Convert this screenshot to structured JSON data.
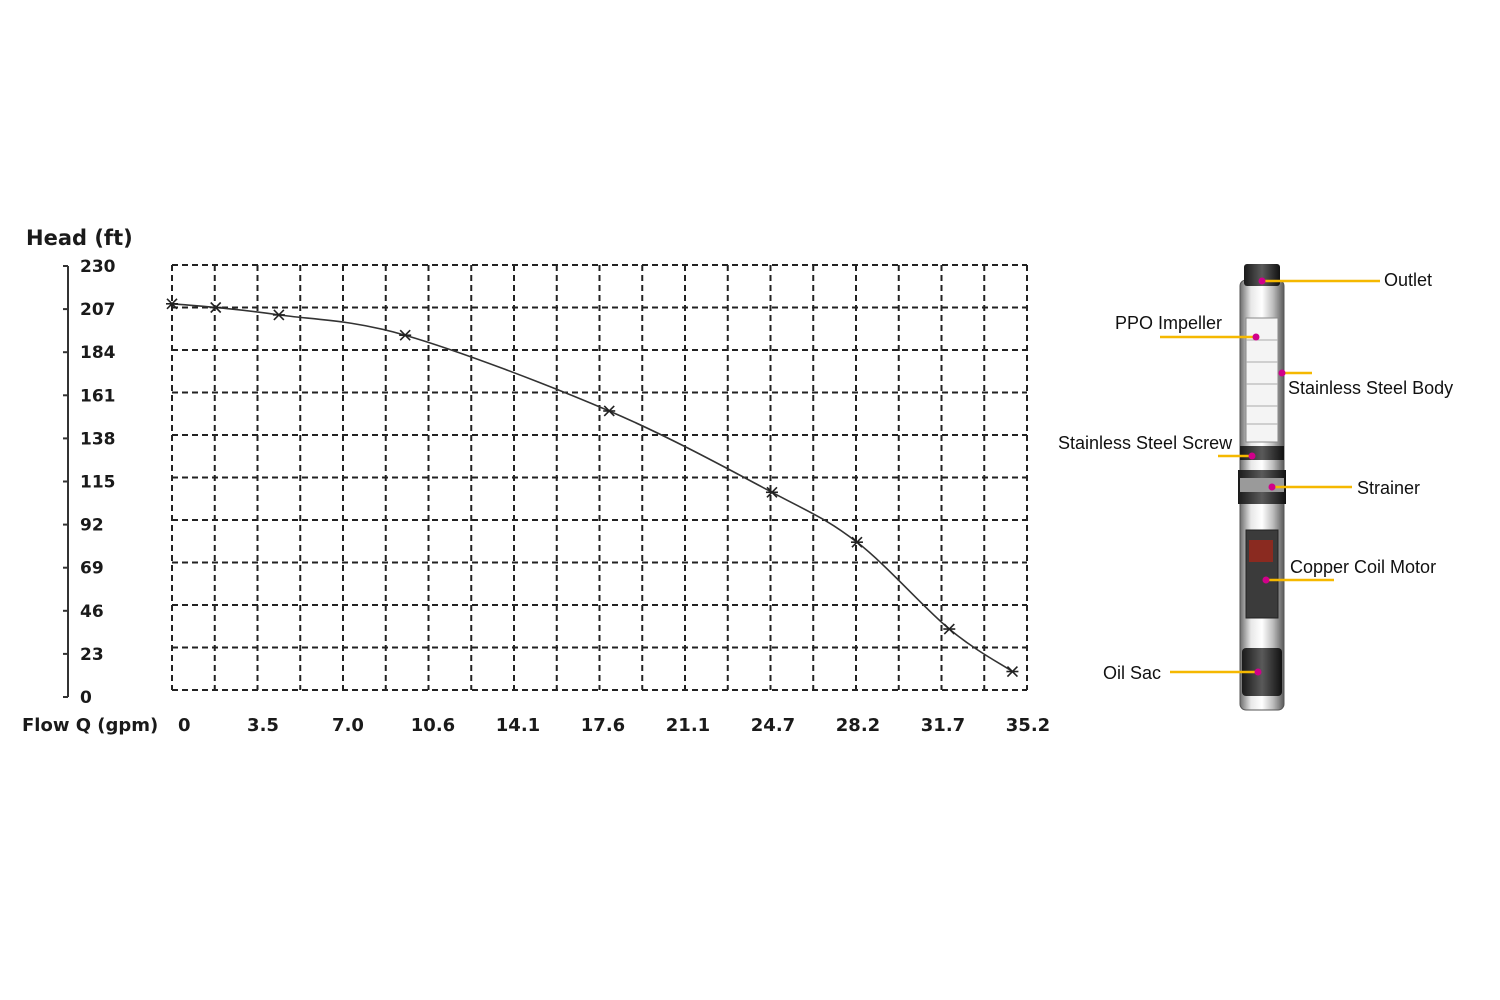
{
  "chart_data": {
    "type": "line",
    "ylabel": "Head (ft)",
    "xlabel": "Flow Q (gpm)",
    "x_ticks": [
      "0",
      "3.5",
      "7.0",
      "10.6",
      "14.1",
      "17.6",
      "21.1",
      "24.7",
      "28.2",
      "31.7",
      "35.2"
    ],
    "y_ticks": [
      "230",
      "207",
      "184",
      "161",
      "138",
      "115",
      "92",
      "69",
      "46",
      "23",
      "0"
    ],
    "xlim": [
      0,
      35.2
    ],
    "ylim": [
      0,
      230
    ],
    "grid": true,
    "series": [
      {
        "x": [
          0,
          1.8,
          4.4,
          9.6,
          18.0,
          24.7,
          28.2,
          32.0,
          34.6
        ],
        "y": [
          209,
          207,
          203,
          192,
          151,
          107,
          80,
          33,
          10
        ]
      }
    ]
  },
  "pump_diagram": {
    "labels": {
      "outlet": "Outlet",
      "ppo_impeller": "PPO Impeller",
      "stainless_steel_body": "Stainless Steel Body",
      "stainless_steel_screw": "Stainless Steel Screw",
      "strainer": "Strainer",
      "copper_coil_motor": "Copper Coil Motor",
      "oil_sac": "Oil Sac"
    },
    "colors": {
      "leader_line": "#f5b800",
      "point_dot": "#d0008a"
    }
  }
}
